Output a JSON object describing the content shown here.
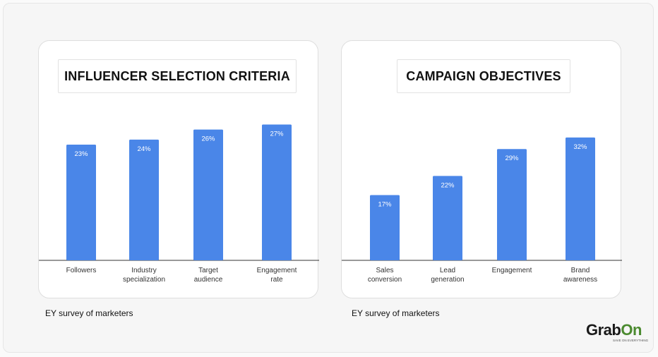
{
  "colors": {
    "bar": "#4a86e8",
    "axis": "#333333",
    "label": "#333333",
    "bar_label": "#ffffff"
  },
  "charts": {
    "left": {
      "source": "EY survey of marketers"
    },
    "right": {
      "source": "EY survey of marketers"
    }
  },
  "logo": {
    "brand_a": "Grab",
    "brand_b": "On",
    "tagline": "SAVE ON EVERYTHING"
  },
  "chart_data": [
    {
      "type": "bar",
      "title": "INFLUENCER SELECTION CRITERIA",
      "categories": [
        [
          "Followers"
        ],
        [
          "Industry",
          "specialization"
        ],
        [
          "Target",
          "audience"
        ],
        [
          "Engagement",
          "rate"
        ]
      ],
      "values": [
        23,
        24,
        26,
        27
      ],
      "value_labels": [
        "23%",
        "24%",
        "26%",
        "27%"
      ],
      "unit": "%"
    },
    {
      "type": "bar",
      "title": "CAMPAIGN OBJECTIVES",
      "categories": [
        [
          "Sales",
          "conversion"
        ],
        [
          "Lead",
          "generation"
        ],
        [
          "Engagement"
        ],
        [
          "Brand",
          "awareness"
        ]
      ],
      "values": [
        17,
        22,
        29,
        32
      ],
      "value_labels": [
        "17%",
        "22%",
        "29%",
        "32%"
      ],
      "unit": "%"
    }
  ]
}
